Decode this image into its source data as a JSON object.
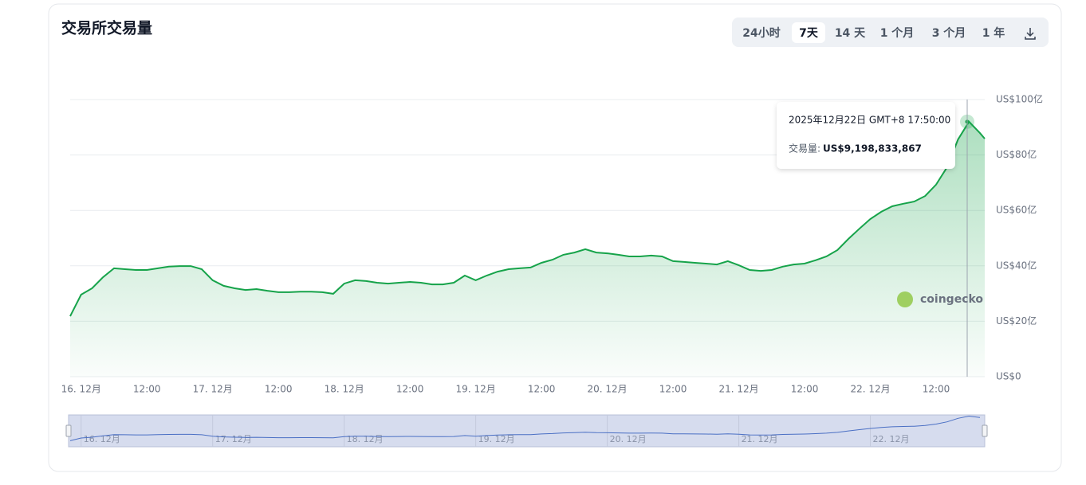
{
  "chart_data": {
    "type": "area",
    "title": "交易所交易量",
    "categories": [
      null,
      "16. 12月",
      null,
      null,
      null,
      null,
      null,
      "12:00",
      null,
      null,
      null,
      null,
      null,
      "17. 12月",
      null,
      null,
      null,
      null,
      null,
      "12:00",
      null,
      null,
      null,
      null,
      null,
      "18. 12月",
      null,
      null,
      null,
      null,
      null,
      "12:00",
      null,
      null,
      null,
      null,
      null,
      "19. 12月",
      null,
      null,
      null,
      null,
      null,
      "12:00",
      null,
      null,
      null,
      null,
      null,
      "20. 12月",
      null,
      null,
      null,
      null,
      null,
      "12:00",
      null,
      null,
      null,
      null,
      null,
      "21. 12月",
      null,
      null,
      null,
      null,
      null,
      "12:00",
      null,
      null,
      null,
      null,
      null,
      "22. 12月",
      null,
      null,
      null,
      null,
      null,
      "12:00",
      null,
      null,
      null,
      null
    ],
    "values": [
      21.8,
      29.6,
      31.9,
      35.9,
      39.1,
      38.8,
      38.5,
      38.5,
      39.1,
      39.7,
      39.9,
      39.9,
      38.8,
      34.8,
      32.8,
      31.9,
      31.3,
      31.6,
      31.0,
      30.5,
      30.5,
      30.7,
      30.7,
      30.5,
      29.9,
      33.6,
      34.8,
      34.5,
      33.9,
      33.6,
      33.9,
      34.2,
      33.9,
      33.3,
      33.3,
      33.9,
      36.5,
      34.8,
      36.5,
      37.9,
      38.8,
      39.1,
      39.4,
      41.1,
      42.2,
      44.0,
      44.8,
      46.0,
      44.8,
      44.5,
      44.0,
      43.4,
      43.4,
      43.7,
      43.4,
      41.7,
      41.4,
      41.1,
      40.8,
      40.5,
      41.7,
      40.2,
      38.5,
      38.2,
      38.5,
      39.7,
      40.5,
      40.8,
      42.0,
      43.4,
      45.7,
      49.7,
      53.4,
      56.9,
      59.5,
      61.5,
      62.4,
      63.2,
      65.2,
      69.3,
      75.6,
      85.6,
      92.0,
      87.9
    ],
    "color": "#16a34a",
    "ylim": [
      0,
      100
    ],
    "yticks": [
      {
        "value": 0,
        "label": "US$0"
      },
      {
        "value": 20,
        "label": "US$20亿"
      },
      {
        "value": 40,
        "label": "US$40亿"
      },
      {
        "value": 60,
        "label": "US$60亿"
      },
      {
        "value": 80,
        "label": "US$80亿"
      },
      {
        "value": 100,
        "label": "US$100亿"
      }
    ],
    "grid": true
  },
  "buttons": [
    "24小时",
    "7天",
    "14 天",
    "1 个月",
    "3 个月",
    "1 年"
  ],
  "tooltip": {
    "date": "2025年12月22日 GMT+8 17:50:00",
    "label": "交易量:",
    "value": "US$9,198,833,867"
  },
  "watermark": "coingecko"
}
